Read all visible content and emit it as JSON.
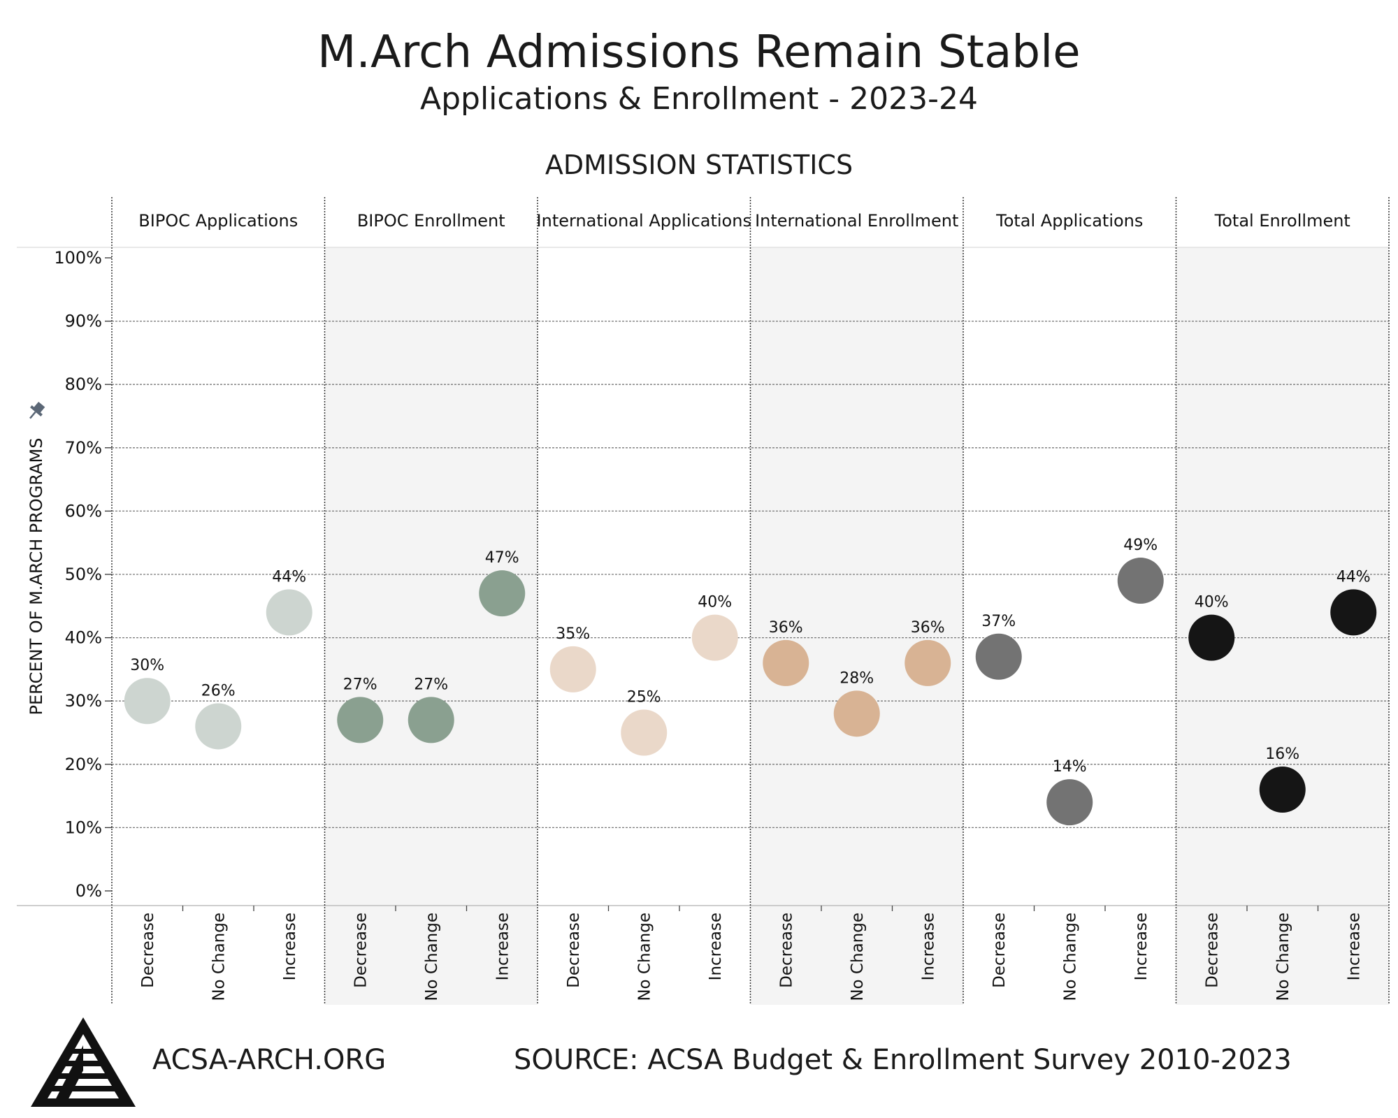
{
  "header": {
    "title": "M.Arch Admissions Remain Stable",
    "subtitle": "Applications & Enrollment - 2023-24",
    "section_title": "ADMISSION STATISTICS"
  },
  "footer": {
    "url": "ACSA-ARCH.ORG",
    "source": "SOURCE: ACSA Budget & Enrollment Survey 2010-2023"
  },
  "icons": {
    "pin": "pin-icon",
    "logo": "acsa-logo-icon"
  },
  "chart_data": {
    "type": "scatter",
    "ylabel": "PERCENT OF M.ARCH PROGRAMS",
    "ylim": [
      0,
      100
    ],
    "yticks": [
      "0%",
      "10%",
      "20%",
      "30%",
      "40%",
      "50%",
      "60%",
      "70%",
      "80%",
      "90%",
      "100%"
    ],
    "categories": [
      "Decrease",
      "No Change",
      "Increase"
    ],
    "grid": true,
    "panels": [
      {
        "name": "BIPOC Applications",
        "color": "#cdd5d0",
        "values": [
          30,
          26,
          44
        ],
        "labels": [
          "30%",
          "26%",
          "44%"
        ]
      },
      {
        "name": "BIPOC Enrollment",
        "color": "#8aa090",
        "values": [
          27,
          27,
          47
        ],
        "labels": [
          "27%",
          "27%",
          "47%"
        ]
      },
      {
        "name": "International Applications",
        "color": "#ead8c9",
        "values": [
          35,
          25,
          40
        ],
        "labels": [
          "35%",
          "25%",
          "40%"
        ]
      },
      {
        "name": "International Enrollment",
        "color": "#d8b394",
        "values": [
          36,
          28,
          36
        ],
        "labels": [
          "36%",
          "28%",
          "36%"
        ]
      },
      {
        "name": "Total Applications",
        "color": "#737373",
        "values": [
          37,
          14,
          49
        ],
        "labels": [
          "37%",
          "14%",
          "49%"
        ]
      },
      {
        "name": "Total Enrollment",
        "color": "#151515",
        "values": [
          40,
          16,
          44
        ],
        "labels": [
          "40%",
          "16%",
          "44%"
        ]
      }
    ]
  }
}
